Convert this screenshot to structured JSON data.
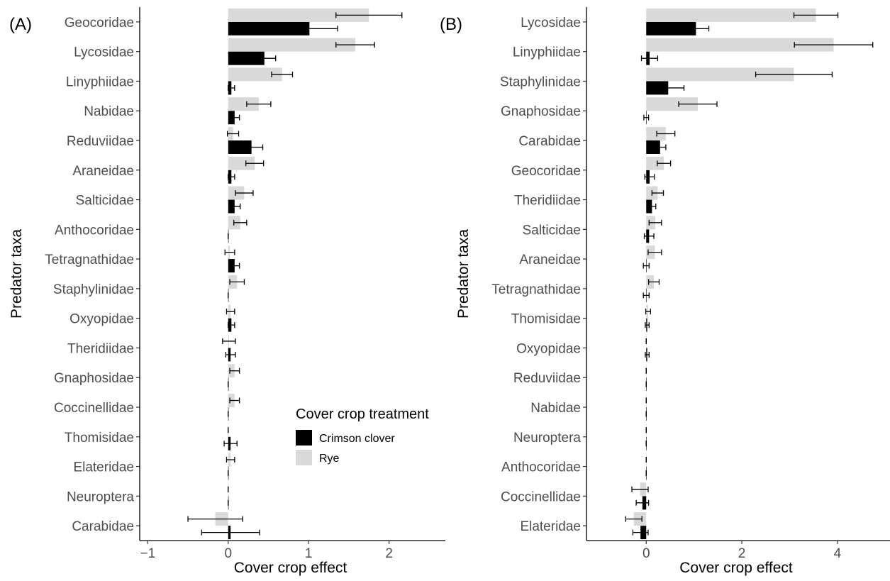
{
  "chart_data": [
    {
      "type": "bar",
      "orientation": "horizontal",
      "panel_label": "(A)",
      "xlabel": "Cover crop effect",
      "ylabel": "Predator taxa",
      "xlim": [
        -1.1,
        2.7
      ],
      "xticks": [
        -1,
        0,
        1,
        2
      ],
      "xtick_labels": [
        "−1",
        "0",
        "1",
        "2"
      ],
      "grid": false,
      "categories": [
        "Geocoridae",
        "Lycosidae",
        "Linyphiidae",
        "Nabidae",
        "Reduviidae",
        "Araneidae",
        "Salticidae",
        "Anthocoridae",
        "Tetragnathidae",
        "Staphylinidae",
        "Oxyopidae",
        "Theridiidae",
        "Gnaphosidae",
        "Coccinellidae",
        "Thomisidae",
        "Elateridae",
        "Neuroptera",
        "Carabidae"
      ],
      "series": [
        {
          "name": "Crimson clover",
          "color": "#000000",
          "values": [
            1.01,
            0.45,
            0.04,
            0.08,
            0.29,
            0.04,
            0.08,
            0.0,
            0.08,
            0.0,
            0.04,
            0.03,
            0.0,
            0.0,
            0.03,
            0.0,
            0.0,
            0.03
          ],
          "error": [
            0.35,
            0.14,
            0.04,
            0.06,
            0.14,
            0.04,
            0.07,
            0.0,
            0.06,
            0.0,
            0.04,
            0.06,
            0.0,
            0.0,
            0.08,
            0.0,
            0.0,
            0.36
          ]
        },
        {
          "name": "Rye",
          "color": "#d9d9d9",
          "values": [
            1.75,
            1.58,
            0.67,
            0.38,
            0.06,
            0.33,
            0.2,
            0.15,
            0.02,
            0.11,
            0.03,
            0.01,
            0.08,
            0.08,
            0.0,
            0.03,
            0.0,
            -0.16
          ],
          "error": [
            0.41,
            0.24,
            0.13,
            0.15,
            0.07,
            0.11,
            0.11,
            0.08,
            0.06,
            0.09,
            0.05,
            0.08,
            0.06,
            0.06,
            0.0,
            0.05,
            0.0,
            0.34
          ]
        }
      ],
      "legend": {
        "title": "Cover crop treatment",
        "entries": [
          "Crimson clover",
          "Rye"
        ],
        "placement": "bottom-right inside panel"
      }
    },
    {
      "type": "bar",
      "orientation": "horizontal",
      "panel_label": "(B)",
      "xlabel": "Cover crop effect",
      "ylabel": "Predator taxa",
      "xlim": [
        -1.25,
        5.1
      ],
      "xticks": [
        0,
        2,
        4
      ],
      "xtick_labels": [
        "0",
        "2",
        "4"
      ],
      "grid": false,
      "categories": [
        "Lycosidae",
        "Linyphiidae",
        "Staphylinidae",
        "Gnaphosidae",
        "Carabidae",
        "Geocoridae",
        "Theridiidae",
        "Salticidae",
        "Araneidae",
        "Tetragnathidae",
        "Thomisidae",
        "Oxyopidae",
        "Reduviidae",
        "Nabidae",
        "Neuroptera",
        "Anthocoridae",
        "Coccinellidae",
        "Elateridae"
      ],
      "series": [
        {
          "name": "Crimson clover",
          "color": "#000000",
          "values": [
            1.04,
            0.07,
            0.46,
            0.0,
            0.29,
            0.07,
            0.12,
            0.06,
            0.0,
            0.0,
            0.02,
            0.02,
            0.0,
            0.0,
            0.0,
            0.0,
            -0.08,
            -0.12
          ],
          "error": [
            0.27,
            0.17,
            0.33,
            0.05,
            0.12,
            0.1,
            0.08,
            0.1,
            0.06,
            0.06,
            0.04,
            0.04,
            0.0,
            0.0,
            0.0,
            0.0,
            0.13,
            0.16
          ]
        },
        {
          "name": "Rye",
          "color": "#d9d9d9",
          "values": [
            3.55,
            3.92,
            3.09,
            1.08,
            0.41,
            0.37,
            0.24,
            0.19,
            0.18,
            0.16,
            0.04,
            0.0,
            0.0,
            0.0,
            0.0,
            0.0,
            -0.13,
            -0.26
          ],
          "error": [
            0.46,
            0.82,
            0.8,
            0.4,
            0.19,
            0.14,
            0.12,
            0.13,
            0.14,
            0.11,
            0.05,
            0.0,
            0.0,
            0.0,
            0.0,
            0.0,
            0.17,
            0.17
          ]
        }
      ]
    }
  ]
}
